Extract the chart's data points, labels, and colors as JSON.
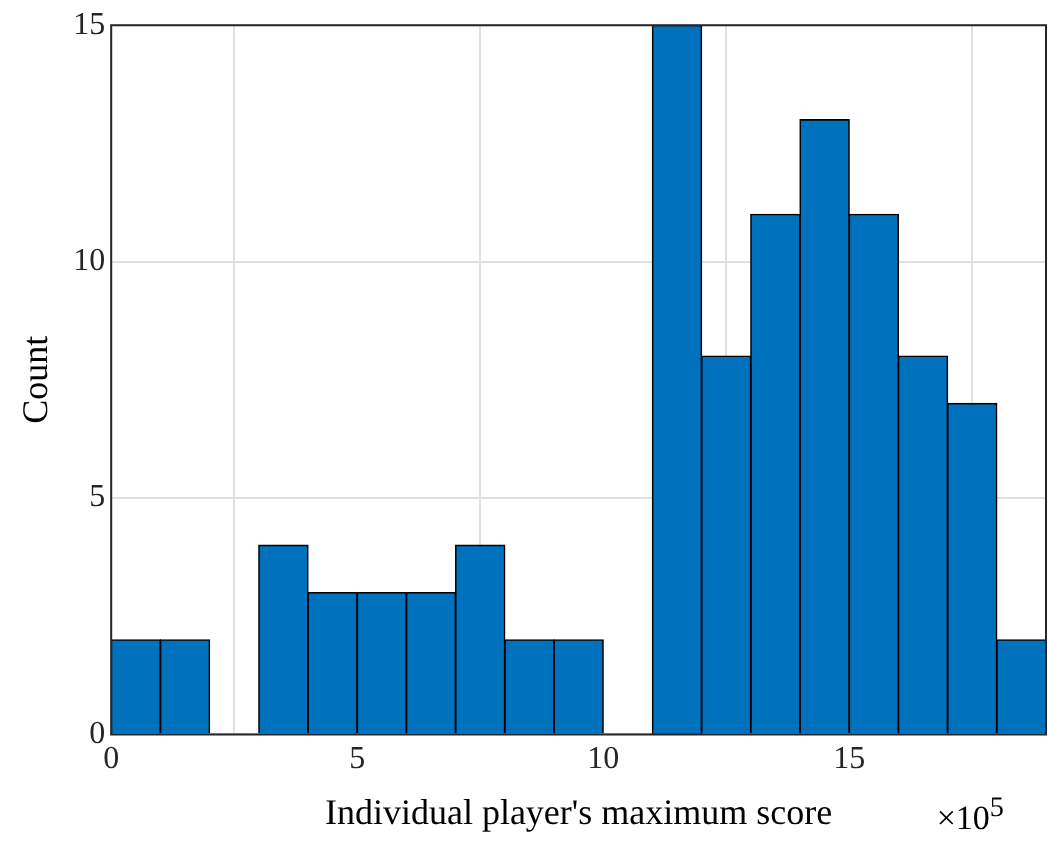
{
  "chart_data": {
    "type": "histogram",
    "xlabel": "Individual player's maximum score",
    "ylabel": "Count",
    "bins": [
      0,
      1,
      2,
      3,
      4,
      5,
      6,
      7,
      8,
      9,
      10,
      11,
      12,
      13,
      14,
      15,
      16,
      17,
      18,
      19
    ],
    "values": [
      2,
      2,
      0,
      4,
      3,
      3,
      3,
      4,
      2,
      2,
      0,
      15,
      8,
      11,
      13,
      11,
      8,
      7,
      2
    ],
    "color": "#0072bd",
    "xlim": [
      0,
      19
    ],
    "xticks": [
      0,
      5,
      10,
      15
    ],
    "ylim": [
      0,
      15
    ],
    "yticks": [
      0,
      5,
      10,
      15
    ],
    "grid": true,
    "annotations": [
      "×10$^{5}$"
    ]
  }
}
